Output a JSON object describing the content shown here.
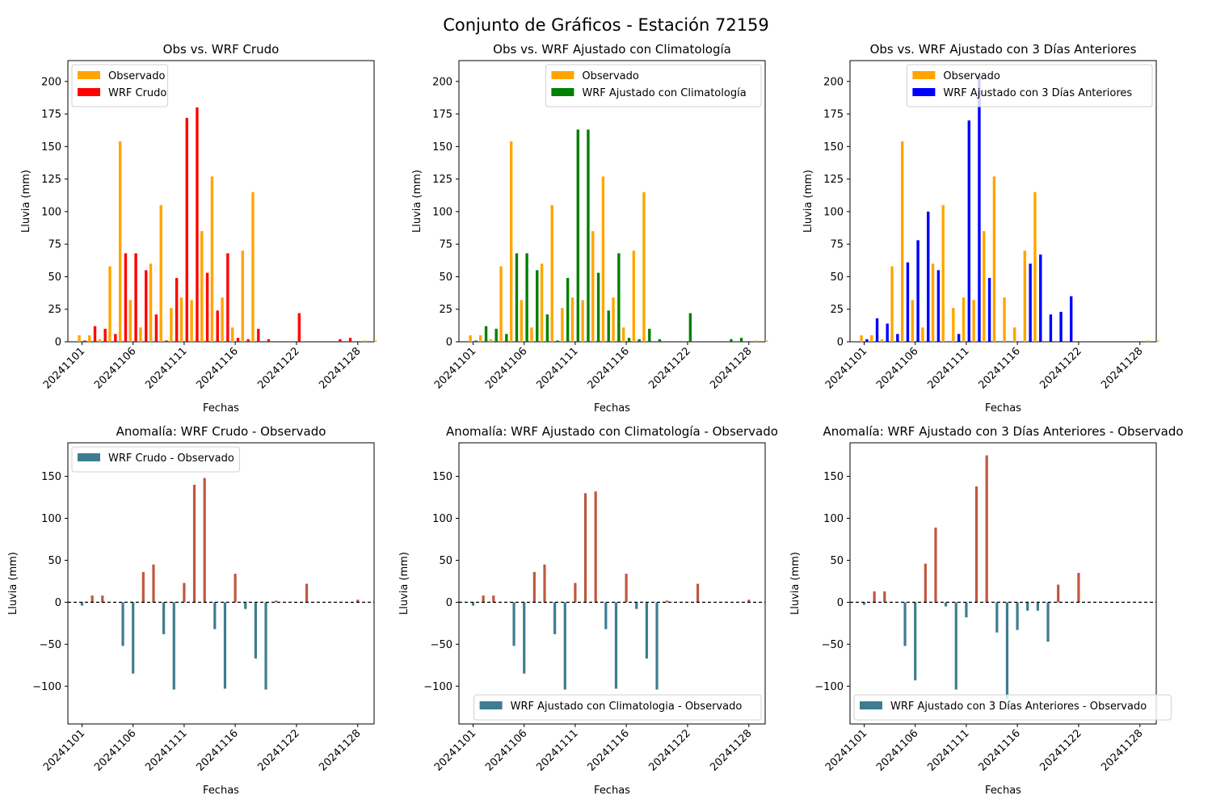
{
  "figure_title": "Conjunto de Gráficos - Estación 72159",
  "chart_data": [
    {
      "type": "bar",
      "title": "Obs vs. WRF Crudo",
      "xlabel": "Fechas",
      "ylabel": "Lluvia (mm)",
      "ylim": [
        0,
        216
      ],
      "yticks": [
        0,
        25,
        50,
        75,
        100,
        125,
        150,
        175,
        200
      ],
      "xticks": [
        "20241101",
        "20241106",
        "20241111",
        "20241116",
        "20241122",
        "20241128"
      ],
      "legend": "top-left",
      "series": [
        {
          "name": "Observado",
          "color": "#ffa500",
          "values": [
            5,
            5,
            2,
            58,
            154,
            32,
            11,
            60,
            105,
            26,
            34,
            32,
            85,
            127,
            34,
            11,
            70,
            115,
            0,
            0,
            0,
            0,
            0,
            0,
            0,
            0,
            0,
            0,
            1,
            1
          ]
        },
        {
          "name": "WRF Crudo",
          "color": "#ff0000",
          "values": [
            1,
            12,
            10,
            6,
            68,
            68,
            55,
            21,
            1,
            49,
            172,
            180,
            53,
            24,
            68,
            3,
            2,
            10,
            2,
            0,
            0,
            22,
            0,
            0,
            0,
            2,
            3,
            0,
            0,
            0
          ]
        }
      ]
    },
    {
      "type": "bar",
      "title": "Obs vs. WRF Ajustado con Climatología",
      "xlabel": "Fechas",
      "ylabel": "Lluvia (mm)",
      "ylim": [
        0,
        216
      ],
      "yticks": [
        0,
        25,
        50,
        75,
        100,
        125,
        150,
        175,
        200
      ],
      "xticks": [
        "20241101",
        "20241106",
        "20241111",
        "20241116",
        "20241122",
        "20241128"
      ],
      "legend": "top-right",
      "series": [
        {
          "name": "Observado",
          "color": "#ffa500",
          "values": [
            5,
            5,
            2,
            58,
            154,
            32,
            11,
            60,
            105,
            26,
            34,
            32,
            85,
            127,
            34,
            11,
            70,
            115,
            0,
            0,
            0,
            0,
            0,
            0,
            0,
            0,
            0,
            0,
            1,
            1
          ]
        },
        {
          "name": "WRF Ajustado con Climatología",
          "color": "#008000",
          "values": [
            1,
            12,
            10,
            6,
            68,
            68,
            55,
            21,
            1,
            49,
            163,
            163,
            53,
            24,
            68,
            3,
            2,
            10,
            2,
            0,
            0,
            22,
            0,
            0,
            0,
            2,
            3,
            0,
            0,
            0
          ]
        }
      ]
    },
    {
      "type": "bar",
      "title": "Obs vs. WRF Ajustado con 3 Días Anteriores",
      "xlabel": "Fechas",
      "ylabel": "Lluvia (mm)",
      "ylim": [
        0,
        216
      ],
      "yticks": [
        0,
        25,
        50,
        75,
        100,
        125,
        150,
        175,
        200
      ],
      "xticks": [
        "20241101",
        "20241106",
        "20241111",
        "20241116",
        "20241122",
        "20241128"
      ],
      "legend": "top-right",
      "series": [
        {
          "name": "Observado",
          "color": "#ffa500",
          "values": [
            5,
            5,
            2,
            58,
            154,
            32,
            11,
            60,
            105,
            26,
            34,
            32,
            85,
            127,
            34,
            11,
            70,
            115,
            0,
            0,
            0,
            0,
            0,
            0,
            0,
            0,
            0,
            0,
            1,
            1
          ]
        },
        {
          "name": "WRF Ajustado con 3 Días Anteriores",
          "color": "#0000ff",
          "values": [
            2,
            18,
            14,
            6,
            61,
            78,
            100,
            55,
            0,
            6,
            170,
            205,
            49,
            0,
            0,
            0,
            60,
            67,
            21,
            23,
            35,
            0,
            0,
            0,
            0,
            0,
            0,
            0,
            0,
            0
          ]
        }
      ]
    },
    {
      "type": "bar",
      "title": "Anomalía: WRF Crudo - Observado",
      "xlabel": "Fechas",
      "ylabel": "Lluvia (mm)",
      "ylim": [
        -145,
        190
      ],
      "yticks": [
        -100,
        -50,
        0,
        50,
        100,
        150
      ],
      "xticks": [
        "20241101",
        "20241106",
        "20241111",
        "20241116",
        "20241122",
        "20241128"
      ],
      "legend": "top-left",
      "series": [
        {
          "name": "WRF Crudo - Observado",
          "color": "#3e7d8f",
          "values": [
            -4,
            8,
            8,
            0,
            -52,
            -85,
            36,
            45,
            -38,
            -104,
            23,
            140,
            148,
            -32,
            -103,
            34,
            -8,
            -67,
            -104,
            2,
            0,
            0,
            22,
            0,
            0,
            0,
            0,
            3,
            0,
            0
          ]
        }
      ]
    },
    {
      "type": "bar",
      "title": "Anomalía: WRF Ajustado con Climatología - Observado",
      "xlabel": "Fechas",
      "ylabel": "Lluvia (mm)",
      "ylim": [
        -145,
        190
      ],
      "yticks": [
        -100,
        -50,
        0,
        50,
        100,
        150
      ],
      "xticks": [
        "20241101",
        "20241106",
        "20241111",
        "20241116",
        "20241122",
        "20241128"
      ],
      "legend": "bottom-right",
      "series": [
        {
          "name": "WRF Ajustado con Climatologia - Observado",
          "color": "#3e7d8f",
          "values": [
            -4,
            8,
            8,
            0,
            -52,
            -85,
            36,
            45,
            -38,
            -104,
            23,
            130,
            132,
            -32,
            -103,
            34,
            -8,
            -67,
            -104,
            2,
            0,
            0,
            22,
            0,
            0,
            0,
            0,
            3,
            0,
            0
          ]
        }
      ]
    },
    {
      "type": "bar",
      "title": "Anomalía: WRF Ajustado con 3 Días Anteriores - Observado",
      "xlabel": "Fechas",
      "ylabel": "Lluvia (mm)",
      "ylim": [
        -145,
        190
      ],
      "yticks": [
        -100,
        -50,
        0,
        50,
        100,
        150
      ],
      "xticks": [
        "20241101",
        "20241106",
        "20241111",
        "20241116",
        "20241122",
        "20241128"
      ],
      "legend": "bottom-right",
      "series": [
        {
          "name": "WRF Ajustado con 3 Días Anteriores - Observado",
          "color": "#3e7d8f",
          "values": [
            -3,
            13,
            13,
            0,
            -52,
            -93,
            46,
            89,
            -5,
            -104,
            -18,
            138,
            175,
            -36,
            -115,
            -33,
            -10,
            -10,
            -47,
            21,
            0,
            35,
            0,
            0,
            0,
            0,
            0,
            0,
            0,
            0
          ]
        }
      ]
    }
  ],
  "colors": {
    "positive_anomaly": "#c0573f",
    "negative_anomaly": "#3e7d8f"
  }
}
